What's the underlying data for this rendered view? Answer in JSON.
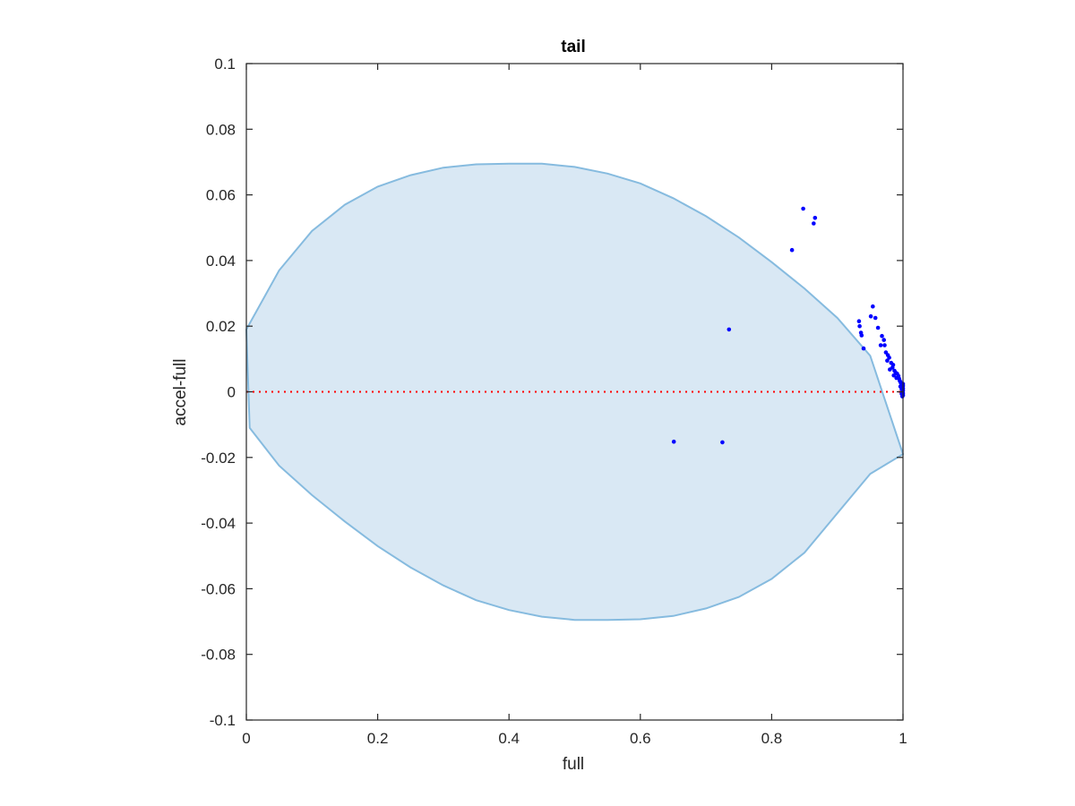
{
  "chart_data": {
    "type": "scatter",
    "title": "tail",
    "xlabel": "full",
    "ylabel": "accel-full",
    "xlim": [
      0,
      1
    ],
    "ylim": [
      -0.1,
      0.1
    ],
    "xticks": [
      0,
      0.2,
      0.4,
      0.6,
      0.8,
      1
    ],
    "xtick_labels": [
      "0",
      "0.2",
      "0.4",
      "0.6",
      "0.8",
      "1"
    ],
    "yticks": [
      -0.1,
      -0.08,
      -0.06,
      -0.04,
      -0.02,
      0,
      0.02,
      0.04,
      0.06,
      0.08,
      0.1
    ],
    "ytick_labels": [
      "-0.1",
      "-0.08",
      "-0.06",
      "-0.04",
      "-0.02",
      "0",
      "0.02",
      "0.04",
      "0.06",
      "0.08",
      "0.1"
    ],
    "grid": false,
    "reference_line": {
      "y": 0,
      "style": "dotted",
      "color": "#ff0000"
    },
    "region": {
      "shape": "ellipse",
      "fill": "#d9e8f4",
      "stroke": "#86bbdf",
      "boundary_top": [
        [
          0,
          0.019
        ],
        [
          0.05,
          0.037
        ],
        [
          0.1,
          0.049
        ],
        [
          0.15,
          0.057
        ],
        [
          0.2,
          0.0625
        ],
        [
          0.25,
          0.066
        ],
        [
          0.3,
          0.0683
        ],
        [
          0.35,
          0.0693
        ],
        [
          0.4,
          0.0695
        ],
        [
          0.45,
          0.0695
        ],
        [
          0.5,
          0.0685
        ],
        [
          0.55,
          0.0665
        ],
        [
          0.6,
          0.0635
        ],
        [
          0.65,
          0.059
        ],
        [
          0.7,
          0.0535
        ],
        [
          0.75,
          0.047
        ],
        [
          0.8,
          0.0395
        ],
        [
          0.85,
          0.0315
        ],
        [
          0.9,
          0.0225
        ],
        [
          0.95,
          0.011
        ],
        [
          1.0,
          -0.019
        ]
      ],
      "boundary_bottom": [
        [
          0,
          0.019
        ],
        [
          0.005,
          -0.011
        ],
        [
          0.05,
          -0.0225
        ],
        [
          0.1,
          -0.0315
        ],
        [
          0.15,
          -0.0395
        ],
        [
          0.2,
          -0.047
        ],
        [
          0.25,
          -0.0535
        ],
        [
          0.3,
          -0.059
        ],
        [
          0.35,
          -0.0635
        ],
        [
          0.4,
          -0.0665
        ],
        [
          0.45,
          -0.0685
        ],
        [
          0.5,
          -0.0695
        ],
        [
          0.55,
          -0.0695
        ],
        [
          0.6,
          -0.0693
        ],
        [
          0.65,
          -0.0683
        ],
        [
          0.7,
          -0.066
        ],
        [
          0.75,
          -0.0625
        ],
        [
          0.8,
          -0.057
        ],
        [
          0.85,
          -0.049
        ],
        [
          0.9,
          -0.037
        ],
        [
          0.95,
          -0.025
        ],
        [
          1.0,
          -0.019
        ]
      ]
    },
    "series": [
      {
        "color": "#0000ff",
        "points": [
          [
            0.848,
            0.0558
          ],
          [
            0.866,
            0.053
          ],
          [
            0.864,
            0.0513
          ],
          [
            0.831,
            0.0432
          ],
          [
            0.735,
            0.019
          ],
          [
            0.651,
            -0.0152
          ],
          [
            0.725,
            -0.0154
          ],
          [
            0.954,
            0.026
          ],
          [
            0.951,
            0.023
          ],
          [
            0.958,
            0.0225
          ],
          [
            0.933,
            0.0215
          ],
          [
            0.934,
            0.02
          ],
          [
            0.962,
            0.0195
          ],
          [
            0.936,
            0.018
          ],
          [
            0.937,
            0.0172
          ],
          [
            0.968,
            0.017
          ],
          [
            0.971,
            0.0158
          ],
          [
            0.966,
            0.0142
          ],
          [
            0.972,
            0.0142
          ],
          [
            0.94,
            0.0132
          ],
          [
            0.974,
            0.012
          ],
          [
            0.977,
            0.0112
          ],
          [
            0.979,
            0.0104
          ],
          [
            0.976,
            0.0095
          ],
          [
            0.982,
            0.0088
          ],
          [
            0.985,
            0.0082
          ],
          [
            0.984,
            0.0074
          ],
          [
            0.98,
            0.0068
          ],
          [
            0.987,
            0.0064
          ],
          [
            0.989,
            0.0058
          ],
          [
            0.991,
            0.0055
          ],
          [
            0.986,
            0.005
          ],
          [
            0.993,
            0.0048
          ],
          [
            0.99,
            0.0042
          ],
          [
            0.994,
            0.004
          ],
          [
            0.995,
            0.0034
          ],
          [
            0.996,
            0.003
          ],
          [
            0.997,
            0.0026
          ],
          [
            0.998,
            0.0022
          ],
          [
            0.999,
            0.0018
          ],
          [
            0.996,
            0.0016
          ],
          [
            0.999,
            0.0012
          ],
          [
            1.0,
            0.001
          ],
          [
            0.998,
            0.0008
          ],
          [
            1.0,
            0.0004
          ],
          [
            0.999,
            0.0
          ],
          [
            1.0,
            -0.0004
          ],
          [
            0.998,
            -0.0006
          ],
          [
            1.0,
            -0.001
          ],
          [
            0.999,
            -0.0014
          ],
          [
            1.0,
            0.0018
          ],
          [
            1.0,
            0.0024
          ]
        ]
      }
    ]
  }
}
